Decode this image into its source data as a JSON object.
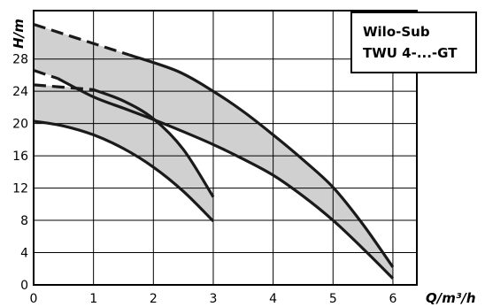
{
  "chart_data": {
    "type": "line",
    "title": "",
    "xlabel": "Q/m³/h",
    "ylabel": "H/m",
    "xlim": [
      0,
      6.4
    ],
    "ylim": [
      0,
      34
    ],
    "grid": true,
    "x_ticks": [
      "0",
      "1",
      "2",
      "3",
      "4",
      "5",
      "6"
    ],
    "y_ticks": [
      "0",
      "4",
      "8",
      "12",
      "16",
      "20",
      "24",
      "28"
    ],
    "legend": {
      "placement": "top-right",
      "lines": [
        "Wilo-Sub",
        "TWU 4-...-GT"
      ]
    },
    "colors": {
      "band_fill": "#d0d0d0",
      "curve": "#1a1a1a",
      "grid": "#000000"
    },
    "bands": [
      {
        "upper_dashed": [
          [
            0,
            32.3
          ],
          [
            1.6,
            28.5
          ]
        ],
        "upper": [
          [
            1.6,
            28.5
          ],
          [
            2.4,
            26.5
          ],
          [
            3,
            24.0
          ],
          [
            3.5,
            21.5
          ],
          [
            4,
            18.6
          ],
          [
            4.5,
            15.5
          ],
          [
            5,
            12.1
          ],
          [
            5.5,
            7.5
          ],
          [
            6,
            2.2
          ]
        ],
        "lower_dashed": [
          [
            0,
            26.6
          ],
          [
            0.4,
            25.6
          ]
        ],
        "lower": [
          [
            0.4,
            25.6
          ],
          [
            1,
            23.3
          ],
          [
            1.5,
            21.9
          ],
          [
            2,
            20.5
          ],
          [
            2.5,
            19.0
          ],
          [
            3,
            17.4
          ],
          [
            3.5,
            15.6
          ],
          [
            4,
            13.6
          ],
          [
            4.5,
            11.0
          ],
          [
            5,
            8.0
          ],
          [
            5.5,
            4.5
          ],
          [
            6,
            0.8
          ]
        ]
      },
      {
        "upper_dashed": [
          [
            0,
            24.8
          ],
          [
            1,
            24.2
          ]
        ],
        "upper": [
          [
            1,
            24.2
          ],
          [
            1.5,
            22.8
          ],
          [
            2,
            20.6
          ],
          [
            2.5,
            16.8
          ],
          [
            3,
            10.9
          ]
        ],
        "lower": [
          [
            0,
            20.3
          ],
          [
            0.5,
            19.7
          ],
          [
            1,
            18.6
          ],
          [
            1.5,
            16.9
          ],
          [
            2,
            14.6
          ],
          [
            2.5,
            11.6
          ],
          [
            3,
            7.9
          ]
        ]
      }
    ]
  }
}
